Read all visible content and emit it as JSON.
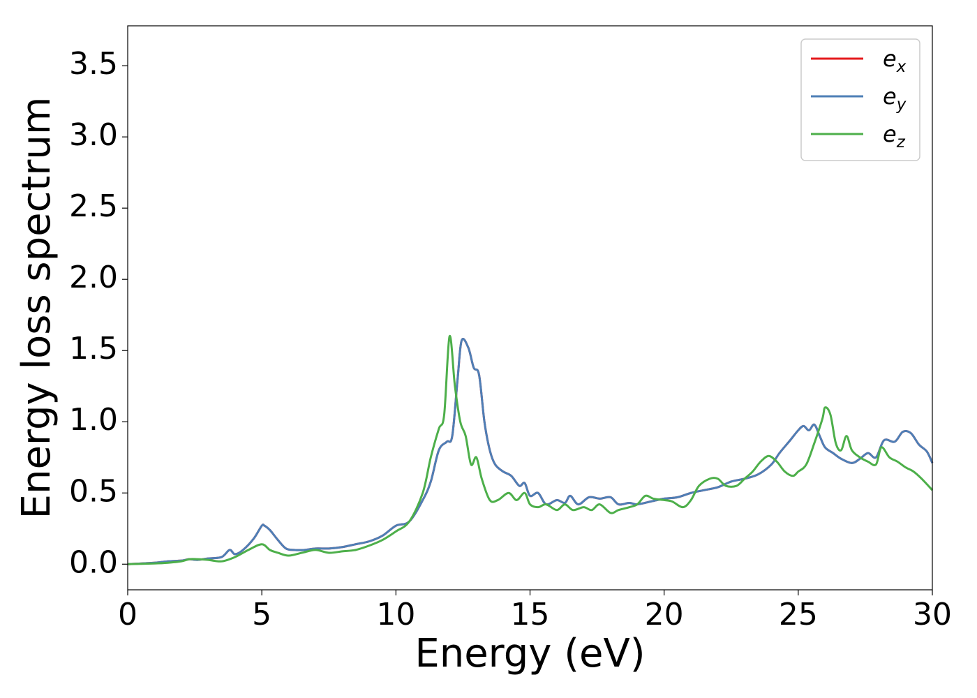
{
  "chart_data": {
    "type": "line",
    "xlabel": "Energy (eV)",
    "ylabel": "Energy loss spectrum",
    "xlim": [
      0,
      30
    ],
    "ylim": [
      -0.18,
      3.78
    ],
    "xticks": [
      "0",
      "5",
      "10",
      "15",
      "20",
      "25",
      "30"
    ],
    "yticks": [
      "0.0",
      "0.5",
      "1.0",
      "1.5",
      "2.0",
      "2.5",
      "3.0",
      "3.5"
    ],
    "grid": false,
    "legend_position": "top-right",
    "series": [
      {
        "name": "e",
        "subscript": "x",
        "color": "#e41a1c",
        "x": [
          0,
          1,
          1.5,
          2,
          2.3,
          2.6,
          3,
          3.5,
          3.8,
          4,
          4.3,
          4.7,
          5,
          5.1,
          5.3,
          5.6,
          5.9,
          6.2,
          6.6,
          7,
          7.5,
          8,
          8.5,
          9,
          9.5,
          10,
          10.5,
          11,
          11.3,
          11.6,
          11.9,
          12.1,
          12.3,
          12.45,
          12.7,
          12.9,
          13.1,
          13.3,
          13.5,
          13.7,
          14,
          14.3,
          14.6,
          14.8,
          15,
          15.3,
          15.6,
          16,
          16.3,
          16.5,
          16.8,
          17.2,
          17.6,
          18,
          18.3,
          18.7,
          19,
          19.5,
          20,
          20.5,
          21,
          21.5,
          22,
          22.5,
          23,
          23.5,
          24,
          24.3,
          24.7,
          25,
          25.2,
          25.4,
          25.6,
          25.8,
          26,
          26.3,
          26.6,
          27,
          27.3,
          27.6,
          27.9,
          28.2,
          28.6,
          28.9,
          29.2,
          29.5,
          29.8,
          30
        ],
        "values": [
          0,
          0.01,
          0.02,
          0.025,
          0.035,
          0.03,
          0.04,
          0.05,
          0.1,
          0.07,
          0.1,
          0.18,
          0.27,
          0.27,
          0.24,
          0.17,
          0.11,
          0.1,
          0.1,
          0.11,
          0.11,
          0.12,
          0.14,
          0.16,
          0.2,
          0.27,
          0.3,
          0.45,
          0.58,
          0.8,
          0.86,
          0.9,
          1.3,
          1.57,
          1.52,
          1.38,
          1.33,
          1.0,
          0.8,
          0.7,
          0.65,
          0.62,
          0.55,
          0.57,
          0.48,
          0.5,
          0.42,
          0.45,
          0.43,
          0.48,
          0.42,
          0.47,
          0.46,
          0.47,
          0.42,
          0.43,
          0.42,
          0.44,
          0.46,
          0.47,
          0.5,
          0.52,
          0.54,
          0.58,
          0.6,
          0.63,
          0.7,
          0.78,
          0.87,
          0.94,
          0.97,
          0.94,
          0.98,
          0.9,
          0.82,
          0.78,
          0.74,
          0.71,
          0.74,
          0.78,
          0.75,
          0.87,
          0.86,
          0.93,
          0.92,
          0.84,
          0.79,
          0.71
        ]
      },
      {
        "name": "e",
        "subscript": "y",
        "color": "#4e7fb6",
        "x": [
          0,
          1,
          1.5,
          2,
          2.3,
          2.6,
          3,
          3.5,
          3.8,
          4,
          4.3,
          4.7,
          5,
          5.1,
          5.3,
          5.6,
          5.9,
          6.2,
          6.6,
          7,
          7.5,
          8,
          8.5,
          9,
          9.5,
          10,
          10.5,
          11,
          11.3,
          11.6,
          11.9,
          12.1,
          12.3,
          12.45,
          12.7,
          12.9,
          13.1,
          13.3,
          13.5,
          13.7,
          14,
          14.3,
          14.6,
          14.8,
          15,
          15.3,
          15.6,
          16,
          16.3,
          16.5,
          16.8,
          17.2,
          17.6,
          18,
          18.3,
          18.7,
          19,
          19.5,
          20,
          20.5,
          21,
          21.5,
          22,
          22.5,
          23,
          23.5,
          24,
          24.3,
          24.7,
          25,
          25.2,
          25.4,
          25.6,
          25.8,
          26,
          26.3,
          26.6,
          27,
          27.3,
          27.6,
          27.9,
          28.2,
          28.6,
          28.9,
          29.2,
          29.5,
          29.8,
          30
        ],
        "values": [
          0,
          0.01,
          0.02,
          0.025,
          0.035,
          0.03,
          0.04,
          0.05,
          0.1,
          0.07,
          0.1,
          0.18,
          0.27,
          0.27,
          0.24,
          0.17,
          0.11,
          0.1,
          0.1,
          0.11,
          0.11,
          0.12,
          0.14,
          0.16,
          0.2,
          0.27,
          0.3,
          0.45,
          0.58,
          0.8,
          0.86,
          0.9,
          1.3,
          1.57,
          1.52,
          1.38,
          1.33,
          1.0,
          0.8,
          0.7,
          0.65,
          0.62,
          0.55,
          0.57,
          0.48,
          0.5,
          0.42,
          0.45,
          0.43,
          0.48,
          0.42,
          0.47,
          0.46,
          0.47,
          0.42,
          0.43,
          0.42,
          0.44,
          0.46,
          0.47,
          0.5,
          0.52,
          0.54,
          0.58,
          0.6,
          0.63,
          0.7,
          0.78,
          0.87,
          0.94,
          0.97,
          0.94,
          0.98,
          0.9,
          0.82,
          0.78,
          0.74,
          0.71,
          0.74,
          0.78,
          0.75,
          0.87,
          0.86,
          0.93,
          0.92,
          0.84,
          0.79,
          0.71
        ]
      },
      {
        "name": "e",
        "subscript": "z",
        "color": "#4daf4a",
        "x": [
          0,
          1,
          1.5,
          2,
          2.3,
          2.6,
          3,
          3.5,
          4,
          4.5,
          5,
          5.3,
          5.6,
          6,
          6.5,
          7,
          7.5,
          8,
          8.5,
          9,
          9.5,
          10,
          10.5,
          11,
          11.3,
          11.6,
          11.8,
          12.0,
          12.2,
          12.4,
          12.6,
          12.8,
          13.0,
          13.2,
          13.5,
          13.8,
          14.2,
          14.5,
          14.8,
          15,
          15.3,
          15.6,
          16,
          16.3,
          16.6,
          17,
          17.3,
          17.6,
          18,
          18.3,
          18.7,
          19,
          19.3,
          19.6,
          20,
          20.3,
          20.7,
          21,
          21.3,
          21.7,
          22,
          22.3,
          22.7,
          23,
          23.3,
          23.6,
          23.9,
          24.2,
          24.5,
          24.8,
          25,
          25.3,
          25.6,
          25.9,
          26.0,
          26.2,
          26.4,
          26.6,
          26.8,
          27,
          27.3,
          27.6,
          27.9,
          28.1,
          28.4,
          28.7,
          29,
          29.3,
          29.6,
          30
        ],
        "values": [
          0,
          0.005,
          0.01,
          0.02,
          0.035,
          0.035,
          0.03,
          0.02,
          0.05,
          0.1,
          0.14,
          0.1,
          0.08,
          0.06,
          0.08,
          0.1,
          0.08,
          0.09,
          0.1,
          0.13,
          0.17,
          0.23,
          0.3,
          0.5,
          0.75,
          0.95,
          1.05,
          1.6,
          1.25,
          1.0,
          0.9,
          0.7,
          0.75,
          0.6,
          0.45,
          0.45,
          0.5,
          0.45,
          0.5,
          0.42,
          0.4,
          0.42,
          0.38,
          0.42,
          0.38,
          0.4,
          0.38,
          0.42,
          0.36,
          0.38,
          0.4,
          0.42,
          0.48,
          0.46,
          0.45,
          0.44,
          0.4,
          0.45,
          0.55,
          0.6,
          0.6,
          0.55,
          0.55,
          0.6,
          0.65,
          0.72,
          0.76,
          0.72,
          0.65,
          0.62,
          0.65,
          0.7,
          0.85,
          1.02,
          1.1,
          1.05,
          0.85,
          0.8,
          0.9,
          0.8,
          0.75,
          0.72,
          0.7,
          0.82,
          0.75,
          0.72,
          0.68,
          0.65,
          0.6,
          0.52
        ]
      }
    ]
  }
}
